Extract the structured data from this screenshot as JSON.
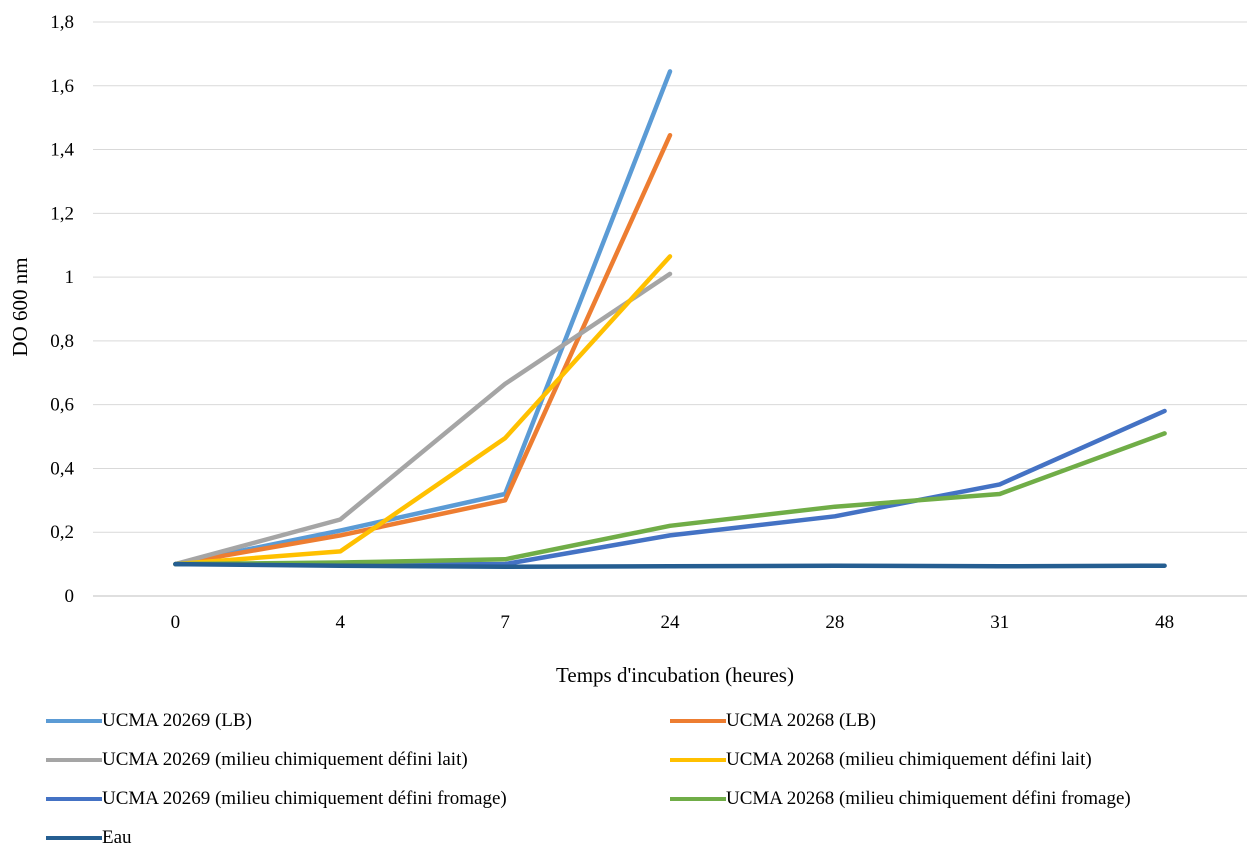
{
  "chart_data": {
    "type": "line",
    "title": "",
    "xlabel": "Temps d'incubation (heures)",
    "ylabel": "DO 600 nm",
    "categories": [
      "0",
      "4",
      "7",
      "24",
      "28",
      "31",
      "48"
    ],
    "ylim": [
      0,
      1.8
    ],
    "yticks": [
      "0",
      "0,2",
      "0,4",
      "0,6",
      "0,8",
      "1",
      "1,2",
      "1,4",
      "1,6",
      "1,8"
    ],
    "grid": true,
    "legend_position": "bottom",
    "series": [
      {
        "name": "UCMA 20269 (LB)",
        "color": "#5B9BD5",
        "values": [
          0.1,
          0.205,
          0.32,
          1.645,
          null,
          null,
          null
        ]
      },
      {
        "name": "UCMA 20268 (LB)",
        "color": "#ED7D31",
        "values": [
          0.1,
          0.19,
          0.3,
          1.445,
          null,
          null,
          null
        ]
      },
      {
        "name": "UCMA 20269 (milieu chimiquement défini lait)",
        "color": "#A5A5A5",
        "values": [
          0.1,
          0.24,
          0.665,
          1.01,
          null,
          null,
          null
        ]
      },
      {
        "name": "UCMA 20268 (milieu chimiquement défini lait)",
        "color": "#FFC000",
        "values": [
          0.1,
          0.14,
          0.495,
          1.065,
          null,
          null,
          null
        ]
      },
      {
        "name": "UCMA 20269 (milieu chimiquement défini fromage)",
        "color": "#4472C4",
        "values": [
          0.1,
          0.1,
          0.1,
          0.19,
          0.25,
          0.35,
          0.58
        ]
      },
      {
        "name": "UCMA 20268 (milieu chimiquement défini fromage)",
        "color": "#70AD47",
        "values": [
          0.1,
          0.105,
          0.115,
          0.22,
          0.28,
          0.32,
          0.51
        ]
      },
      {
        "name": "Eau",
        "color": "#255E91",
        "values": [
          0.1,
          0.095,
          0.092,
          0.093,
          0.095,
          0.093,
          0.095
        ]
      }
    ]
  }
}
